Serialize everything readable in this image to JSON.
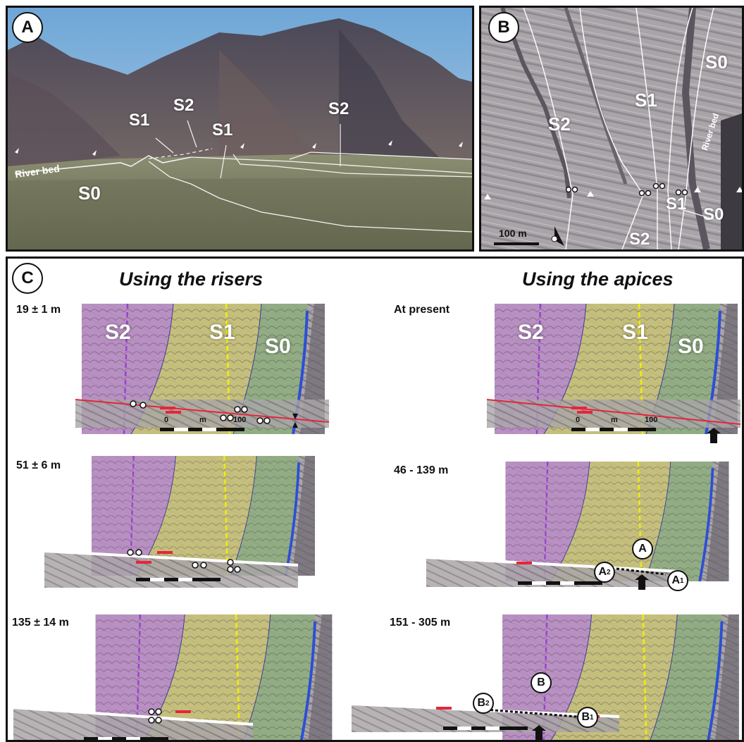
{
  "panelA": {
    "badge": "A",
    "labels": {
      "s1_left": "S1",
      "s2_left": "S2",
      "s1_mid": "S1",
      "s2_right": "S2",
      "river": "River bed",
      "s0": "S0"
    }
  },
  "panelB": {
    "badge": "B",
    "labels": {
      "s2": "S2",
      "s1": "S1",
      "s0_top": "S0",
      "river": "River bed",
      "s1_low": "S1",
      "s0_low": "S0",
      "s2_low": "S2"
    },
    "scale": "100 m"
  },
  "panelC": {
    "badge": "C",
    "title_left": "Using the risers",
    "title_right": "Using the apices",
    "fans": {
      "s2": "S2",
      "s1": "S1",
      "s0": "S0"
    },
    "rows_left": [
      "19 ± 1 m",
      "51 ± 6 m",
      "135 ± 14 m"
    ],
    "rows_right": [
      "At present",
      "46 - 139 m",
      "151 - 305 m"
    ],
    "scalebar": {
      "zero": "0",
      "unit": "m",
      "hundred": "100"
    },
    "markers": {
      "a": "A",
      "a2": "A",
      "a2_sub": "2",
      "a1": "A",
      "a1_sub": "1",
      "b": "B",
      "b2": "B",
      "b2_sub": "2",
      "b1": "B",
      "b1_sub": "1"
    }
  },
  "colors": {
    "fan_s2": "#b98fc4",
    "fan_s1": "#c8c278",
    "fan_s0": "#8fae7f",
    "fault": "#e8243c",
    "channel": "#2c4fd6"
  }
}
